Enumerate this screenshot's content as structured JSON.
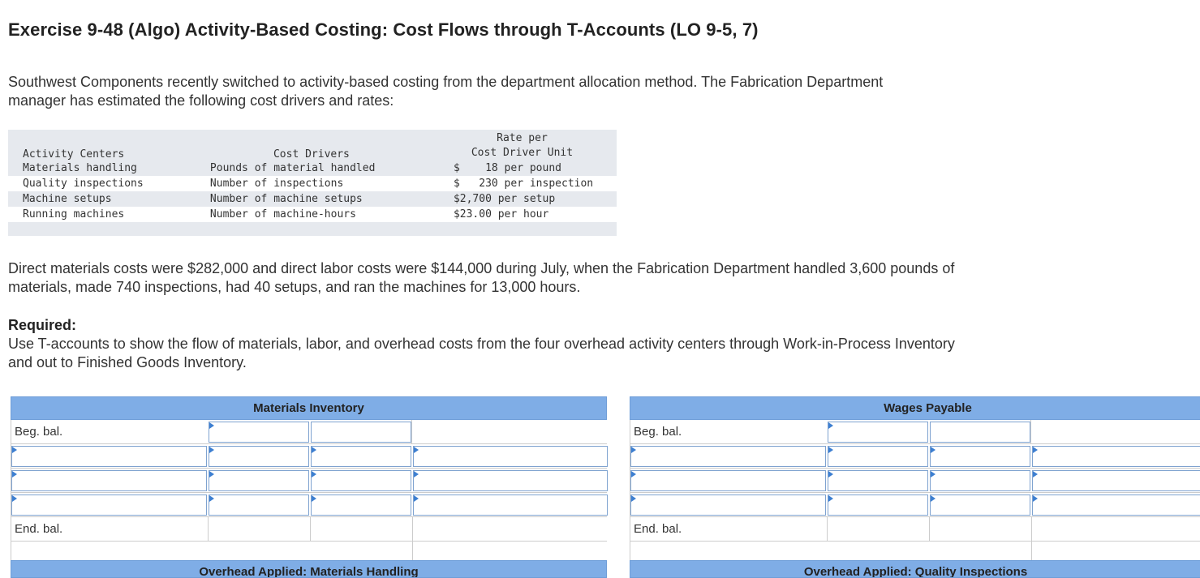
{
  "title": "Exercise 9-48 (Algo) Activity-Based Costing: Cost Flows through T-Accounts (LO 9-5, 7)",
  "intro": "Southwest Components recently switched to activity-based costing from the department allocation method. The Fabrication Department manager has estimated the following cost drivers and rates:",
  "driver_table": {
    "headers": {
      "activity": "Activity Centers",
      "driver": "Cost Drivers",
      "rate_line1": "Rate per",
      "rate_line2": "Cost Driver Unit"
    },
    "rows": [
      {
        "activity": "Materials handling",
        "driver": "Pounds of material handled",
        "rate": "$    18 per pound"
      },
      {
        "activity": "Quality inspections",
        "driver": "Number of inspections",
        "rate": "$   230 per inspection"
      },
      {
        "activity": "Machine setups",
        "driver": "Number of machine setups",
        "rate": "$2,700 per setup"
      },
      {
        "activity": "Running machines",
        "driver": "Number of machine-hours",
        "rate": "$23.00 per hour"
      }
    ]
  },
  "direct_costs": "Direct materials costs were $282,000 and direct labor costs were $144,000 during July, when the Fabrication Department handled 3,600 pounds of materials, made 740 inspections, had 40 setups, and ran the machines for 13,000 hours.",
  "required": {
    "label": "Required:",
    "text": "Use T-accounts to show the flow of materials, labor, and overhead costs from the four overhead activity centers through Work-in-Process Inventory and out to Finished Goods Inventory."
  },
  "taccounts": [
    {
      "title": "Materials Inventory",
      "beg_label": "Beg. bal.",
      "end_label": "End. bal."
    },
    {
      "title": "Wages Payable",
      "beg_label": "Beg. bal.",
      "end_label": "End. bal."
    }
  ],
  "next_accounts": [
    "Overhead Applied: Materials Handling",
    "Overhead Applied: Quality Inspections"
  ],
  "colors": {
    "header_blue": "#7fade6",
    "input_border": "#7fa3d0",
    "marker_blue": "#3d7fd1"
  }
}
